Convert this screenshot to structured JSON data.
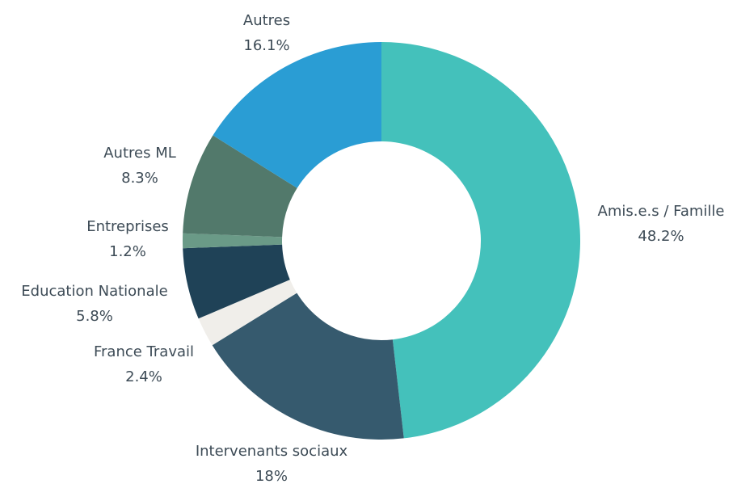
{
  "chart_data": {
    "type": "donut",
    "categories": [
      "Amis.e.s / Famille",
      "Intervenants sociaux",
      "France Travail",
      "Education Nationale",
      "Entreprises",
      "Autres ML",
      "Autres"
    ],
    "values": [
      48.2,
      18,
      2.4,
      5.8,
      1.2,
      8.3,
      16.1
    ],
    "value_labels": [
      "48.2%",
      "18%",
      "2.4%",
      "5.8%",
      "1.2%",
      "8.3%",
      "16.1%"
    ],
    "colors": [
      "#44c1bb",
      "#365a6e",
      "#f0eeea",
      "#1f4257",
      "#6a9a87",
      "#52796b",
      "#2a9dd4"
    ]
  }
}
